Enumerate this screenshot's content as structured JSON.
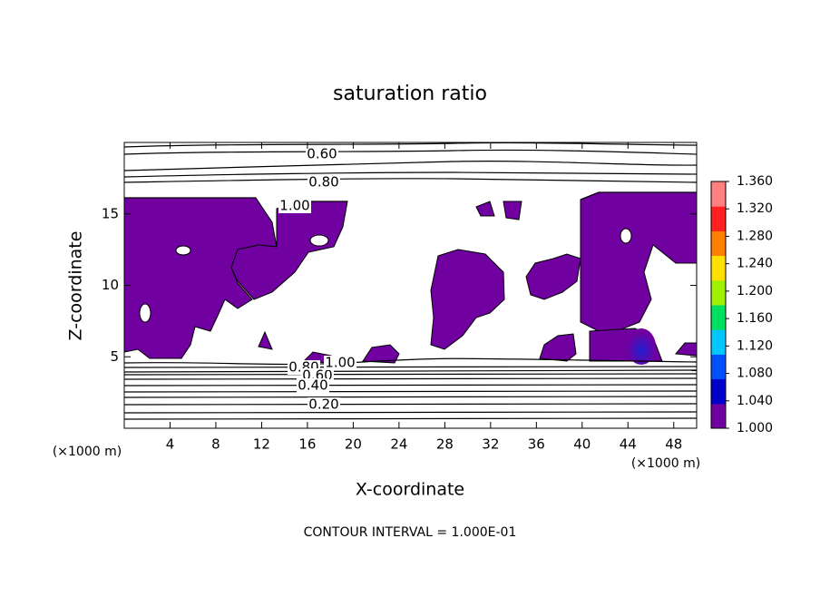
{
  "chart_data": {
    "type": "contour",
    "title": "saturation ratio",
    "x_label": "X-coordinate",
    "y_label": "Z-coordinate",
    "x_unit": "(×1000 m)",
    "y_unit": "(×1000 m)",
    "footnote": "CONTOUR INTERVAL = 1.000E-01",
    "xlim": [
      0,
      50
    ],
    "xticks": [
      4,
      8,
      12,
      16,
      20,
      24,
      28,
      32,
      36,
      40,
      44,
      48
    ],
    "ylim": [
      0,
      20
    ],
    "yticks": [
      5,
      10,
      15
    ],
    "contour_levels": [
      {
        "value": 0.6,
        "label": "0.60"
      },
      {
        "value": 0.8,
        "label": "0.80"
      },
      {
        "value": 1.0,
        "label": "1.00"
      },
      {
        "value": 0.8,
        "label": "0.80"
      },
      {
        "value": 0.6,
        "label": "0.60"
      },
      {
        "value": 0.4,
        "label": "0.40"
      },
      {
        "value": 0.2,
        "label": "0.20"
      },
      {
        "value": 1.0,
        "label": "1.00"
      }
    ],
    "colorbar": {
      "colors": [
        "#7000a0",
        "#0000c8",
        "#0050ff",
        "#00c8ff",
        "#00e060",
        "#a0f000",
        "#ffe000",
        "#ff8000",
        "#ff2020",
        "#ff8080"
      ],
      "lim": [
        1.0,
        1.36
      ],
      "ticks": [
        {
          "value": 1.0,
          "label": "1.000"
        },
        {
          "value": 1.04,
          "label": "1.040"
        },
        {
          "value": 1.08,
          "label": "1.080"
        },
        {
          "value": 1.12,
          "label": "1.120"
        },
        {
          "value": 1.16,
          "label": "1.160"
        },
        {
          "value": 1.2,
          "label": "1.200"
        },
        {
          "value": 1.24,
          "label": "1.240"
        },
        {
          "value": 1.28,
          "label": "1.280"
        },
        {
          "value": 1.32,
          "label": "1.320"
        },
        {
          "value": 1.36,
          "label": "1.360"
        }
      ]
    }
  }
}
